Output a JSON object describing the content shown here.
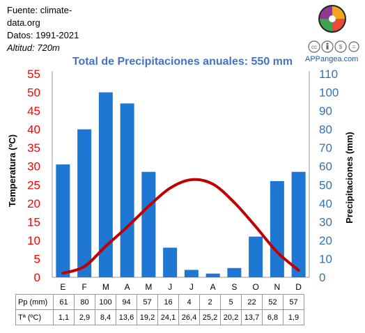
{
  "meta": {
    "source_line1": "Fuente: climate-",
    "source_line2": "data.org",
    "period": "Datos: 1991-2021",
    "altitude": "Altitud: 720m"
  },
  "brand": {
    "name": "APPangea.com",
    "logo_icon": "appangea-puzzle-logo-icon",
    "license_icon": "cc-by-nc-nd-icon"
  },
  "chart_data": {
    "type": "bar+line",
    "title": "Total de Precipitaciones anuales: 550 mm",
    "categories": [
      "E",
      "F",
      "M",
      "A",
      "M",
      "J",
      "J",
      "A",
      "S",
      "O",
      "N",
      "D"
    ],
    "series": [
      {
        "name": "Pp (mm)",
        "type": "bar",
        "axis": "right",
        "color": "#1f77d4",
        "values": [
          61,
          80,
          100,
          94,
          57,
          16,
          4,
          2,
          5,
          22,
          52,
          57
        ]
      },
      {
        "name": "Tª (ºC)",
        "type": "line",
        "axis": "left",
        "color": "#c00000",
        "values": [
          1.1,
          2.9,
          8.4,
          13.6,
          19.2,
          24.1,
          26.4,
          25.2,
          20.2,
          13.7,
          6.8,
          1.9
        ]
      }
    ],
    "left_axis": {
      "label": "Temperatura (ºC)",
      "range": [
        0,
        55
      ],
      "ticks": [
        0,
        5,
        10,
        15,
        20,
        25,
        30,
        35,
        40,
        45,
        50,
        55
      ],
      "color": "#ff0000"
    },
    "right_axis": {
      "label": "Precipitaciones (mm)",
      "range": [
        0,
        110
      ],
      "ticks": [
        0,
        10,
        20,
        30,
        40,
        50,
        60,
        70,
        80,
        90,
        100,
        110
      ],
      "color": "#2e75b6"
    },
    "table": {
      "precip_label": "Pp (mm)",
      "precip_values": [
        "61",
        "80",
        "100",
        "94",
        "57",
        "16",
        "4",
        "2",
        "5",
        "22",
        "52",
        "57"
      ],
      "temp_label": "Tª (ºC)",
      "temp_values": [
        "1,1",
        "2,9",
        "8,4",
        "13,6",
        "19,2",
        "24,1",
        "26,4",
        "25,2",
        "20,2",
        "13,7",
        "6,8",
        "1,9"
      ]
    }
  }
}
